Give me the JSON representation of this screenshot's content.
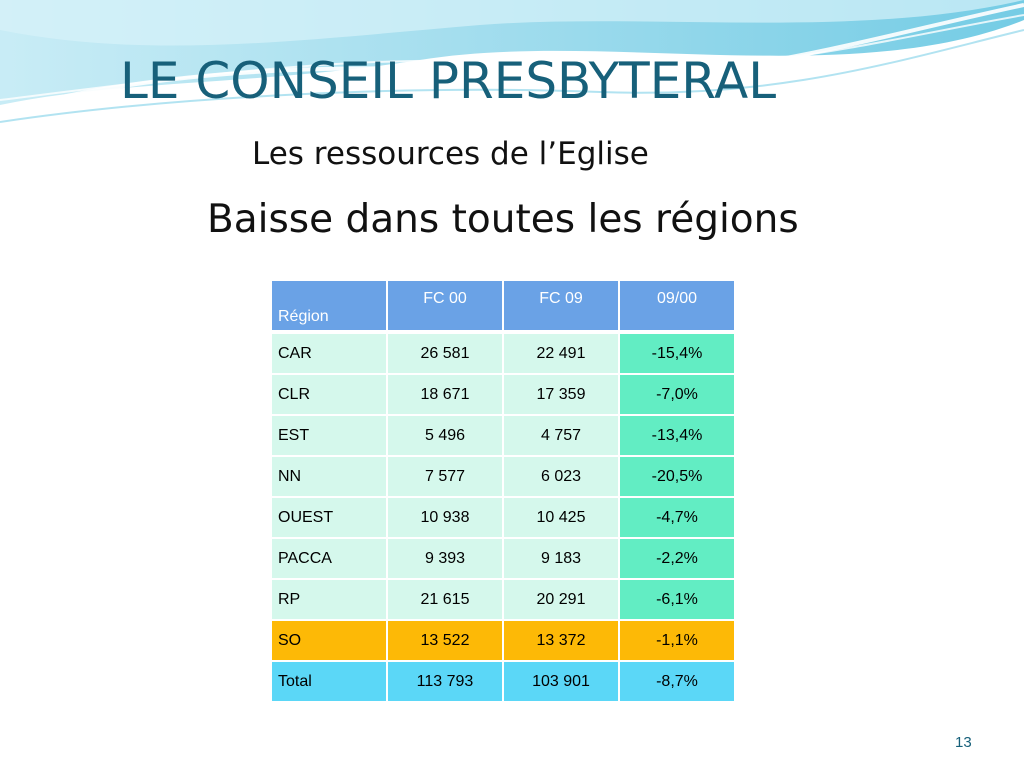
{
  "slide": {
    "title": "LE CONSEIL PRESBYTERAL",
    "subtitle": "Les ressources de l’Eglise",
    "heading": "Baisse dans toutes les régions",
    "page_number": "13",
    "colors": {
      "title": "#17607a",
      "header_bg": "#6aa2e6",
      "row_bg": "#d5f8ec",
      "pct_bg": "#62edc3",
      "highlight_bg": "#fdb906",
      "total_bg": "#5bd7f7"
    }
  },
  "table": {
    "headers": [
      "Région",
      "FC 00",
      "FC 09",
      "09/00"
    ],
    "rows": [
      [
        "CAR",
        "26 581",
        "22 491",
        "-15,4%"
      ],
      [
        "CLR",
        "18 671",
        "17 359",
        "-7,0%"
      ],
      [
        "EST",
        "5 496",
        "4 757",
        "-13,4%"
      ],
      [
        "NN",
        "7 577",
        "6 023",
        "-20,5%"
      ],
      [
        "OUEST",
        "10 938",
        "10 425",
        "-4,7%"
      ],
      [
        "PACCA",
        "9 393",
        "9 183",
        "-2,2%"
      ],
      [
        "RP",
        "21 615",
        "20 291",
        "-6,1%"
      ],
      [
        "SO",
        "13 522",
        "13 372",
        "-1,1%"
      ],
      [
        "Total",
        "113 793",
        "103 901",
        "-8,7%"
      ]
    ]
  }
}
